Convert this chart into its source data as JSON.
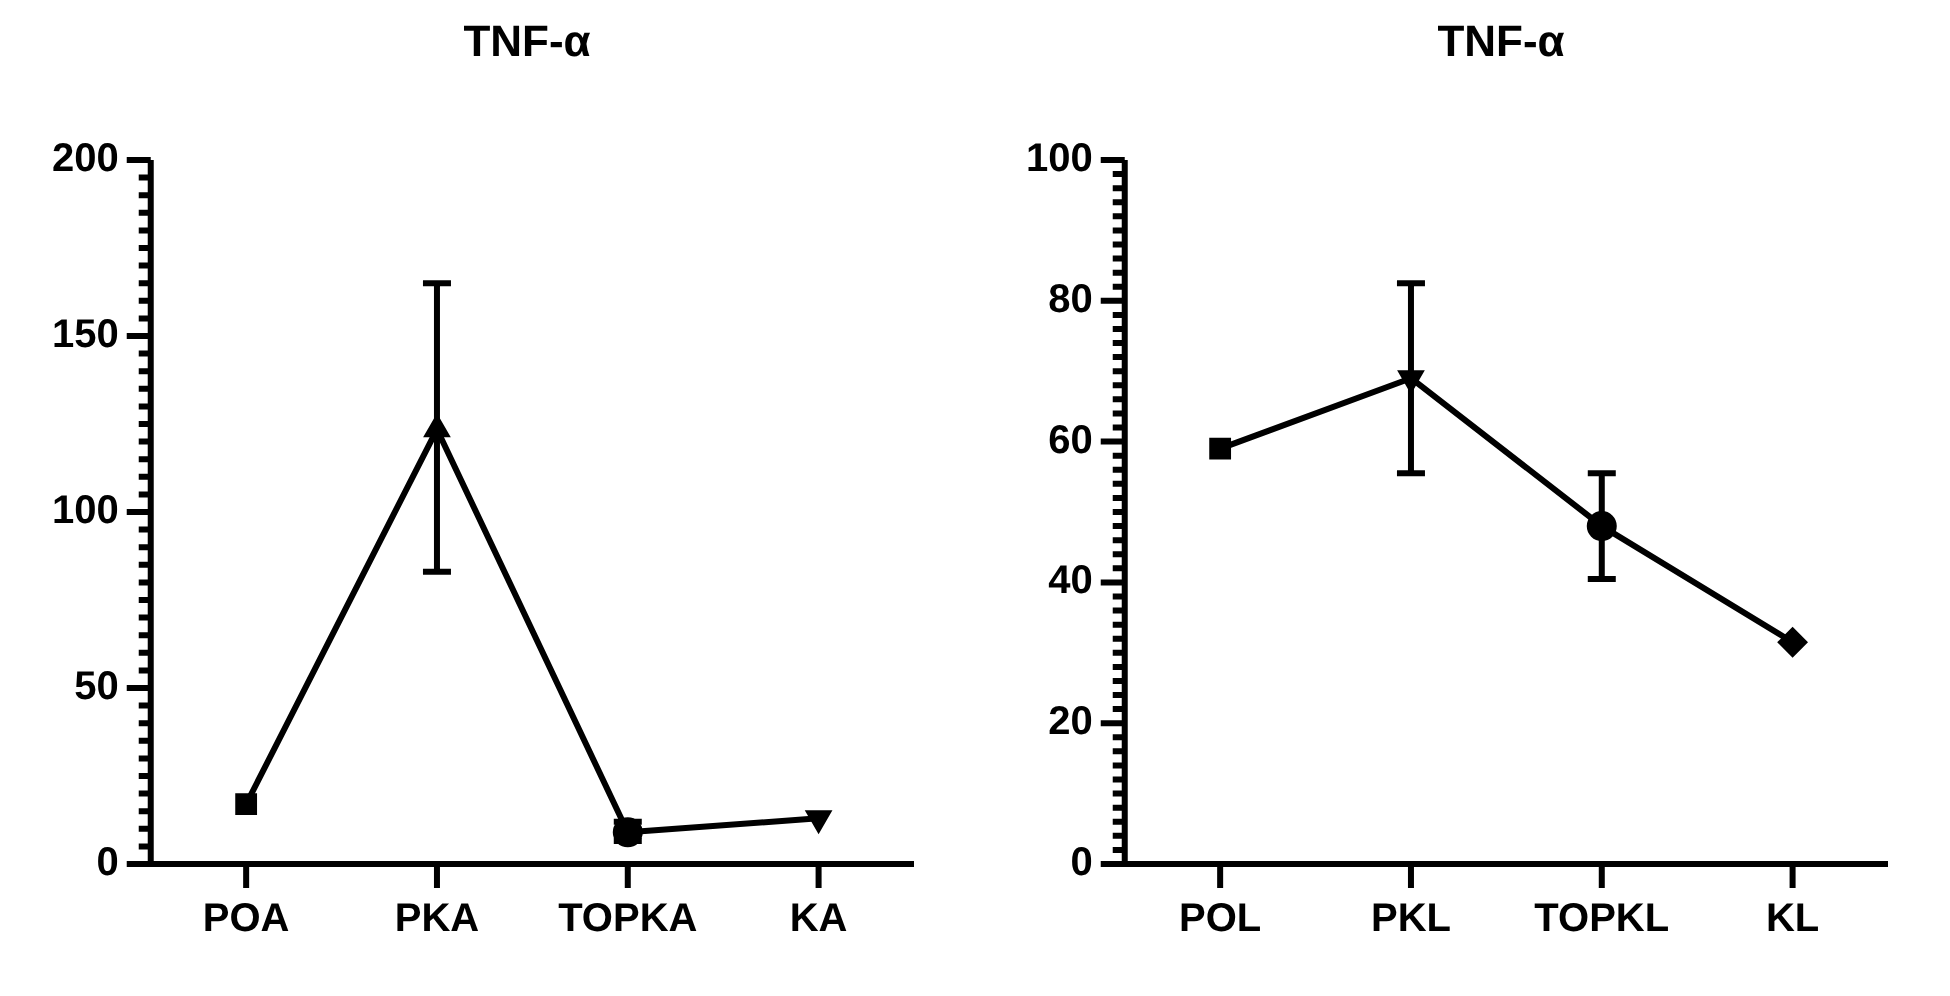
{
  "chart_data": [
    {
      "type": "line",
      "title": "TNF-α",
      "categories": [
        "POA",
        "PKA",
        "TOPKA",
        "KA"
      ],
      "series": [
        {
          "color": "#000000",
          "values": [
            17,
            123.5,
            9,
            13
          ],
          "errors": [
            null,
            [
              83,
              165
            ],
            [
              6.5,
              12
            ],
            null
          ],
          "marker": [
            "square",
            "triangle",
            "circle",
            "triangle-down"
          ]
        }
      ],
      "ylim": [
        0,
        200
      ],
      "yticks": [
        0,
        {
          "value": 5,
          "label": null
        },
        {
          "value": 10,
          "label": null
        },
        {
          "value": 15,
          "label": null
        },
        {
          "value": 20,
          "label": null
        },
        {
          "value": 25,
          "label": null
        },
        {
          "value": 30,
          "label": null
        },
        {
          "value": 35,
          "label": null
        },
        {
          "value": 40,
          "label": null
        },
        {
          "value": 45,
          "label": null
        },
        50,
        {
          "value": 55,
          "label": null
        },
        {
          "value": 60,
          "label": null
        },
        {
          "value": 65,
          "label": null
        },
        {
          "value": 70,
          "label": null
        },
        {
          "value": 75,
          "label": null
        },
        {
          "value": 80,
          "label": null
        },
        {
          "value": 85,
          "label": null
        },
        {
          "value": 90,
          "label": null
        },
        {
          "value": 95,
          "label": null
        },
        100,
        {
          "value": 105,
          "label": null
        },
        {
          "value": 110,
          "label": null
        },
        {
          "value": 115,
          "label": null
        },
        {
          "value": 120,
          "label": null
        },
        {
          "value": 125,
          "label": null
        },
        {
          "value": 130,
          "label": null
        },
        {
          "value": 135,
          "label": null
        },
        {
          "value": 140,
          "label": null
        },
        {
          "value": 145,
          "label": null
        },
        150,
        {
          "value": 155,
          "label": null
        },
        {
          "value": 160,
          "label": null
        },
        {
          "value": 165,
          "label": null
        },
        {
          "value": 170,
          "label": null
        },
        {
          "value": 175,
          "label": null
        },
        {
          "value": 180,
          "label": null
        },
        {
          "value": 185,
          "label": null
        },
        {
          "value": 190,
          "label": null
        },
        {
          "value": 195,
          "label": null
        },
        200
      ],
      "grid": false,
      "legend": false,
      "line_style": "solid"
    },
    {
      "type": "line",
      "title": "TNF-α",
      "categories": [
        "POL",
        "PKL",
        "TOPKL",
        "KL"
      ],
      "series": [
        {
          "color": "#000000",
          "values": [
            59,
            69,
            48,
            31.5
          ],
          "errors": [
            null,
            [
              55.5,
              82.5
            ],
            [
              40.5,
              55.5
            ],
            null
          ],
          "marker": [
            "square",
            "triangle-down",
            "circle",
            "diamond"
          ]
        }
      ],
      "ylim": [
        0,
        100
      ],
      "yticks": [
        0,
        {
          "value": 2,
          "label": null
        },
        {
          "value": 4,
          "label": null
        },
        {
          "value": 6,
          "label": null
        },
        {
          "value": 8,
          "label": null
        },
        {
          "value": 10,
          "label": null
        },
        {
          "value": 12,
          "label": null
        },
        {
          "value": 14,
          "label": null
        },
        {
          "value": 16,
          "label": null
        },
        {
          "value": 18,
          "label": null
        },
        20,
        {
          "value": 22,
          "label": null
        },
        {
          "value": 24,
          "label": null
        },
        {
          "value": 26,
          "label": null
        },
        {
          "value": 28,
          "label": null
        },
        {
          "value": 30,
          "label": null
        },
        {
          "value": 32,
          "label": null
        },
        {
          "value": 34,
          "label": null
        },
        {
          "value": 36,
          "label": null
        },
        {
          "value": 38,
          "label": null
        },
        40,
        {
          "value": 42,
          "label": null
        },
        {
          "value": 44,
          "label": null
        },
        {
          "value": 46,
          "label": null
        },
        {
          "value": 48,
          "label": null
        },
        {
          "value": 50,
          "label": null
        },
        {
          "value": 52,
          "label": null
        },
        {
          "value": 54,
          "label": null
        },
        {
          "value": 56,
          "label": null
        },
        {
          "value": 58,
          "label": null
        },
        60,
        {
          "value": 62,
          "label": null
        },
        {
          "value": 64,
          "label": null
        },
        {
          "value": 66,
          "label": null
        },
        {
          "value": 68,
          "label": null
        },
        {
          "value": 70,
          "label": null
        },
        {
          "value": 72,
          "label": null
        },
        {
          "value": 74,
          "label": null
        },
        {
          "value": 76,
          "label": null
        },
        {
          "value": 78,
          "label": null
        },
        80,
        {
          "value": 82,
          "label": null
        },
        {
          "value": 84,
          "label": null
        },
        {
          "value": 86,
          "label": null
        },
        {
          "value": 88,
          "label": null
        },
        {
          "value": 90,
          "label": null
        },
        {
          "value": 92,
          "label": null
        },
        {
          "value": 94,
          "label": null
        },
        {
          "value": 96,
          "label": null
        },
        {
          "value": 98,
          "label": null
        },
        100
      ],
      "grid": false,
      "legend": false,
      "line_style": "solid"
    }
  ]
}
